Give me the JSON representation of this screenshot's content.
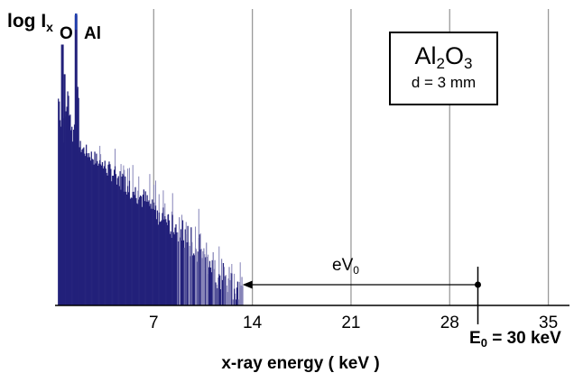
{
  "chart_data": {
    "type": "bar",
    "ylabel_main": "log I",
    "ylabel_sub": "x",
    "xlabel": "x-ray energy ( keV )",
    "x_ticks": [
      7,
      14,
      21,
      28,
      35
    ],
    "xlim": [
      0,
      36.5
    ],
    "ylim": [
      0,
      1
    ],
    "grid_x": true,
    "peaks": [
      {
        "label": "O",
        "energy": 0.52
      },
      {
        "label": "Al",
        "energy": 1.49
      }
    ],
    "specimen": {
      "formula_main": "Al",
      "formula_sub1": "2",
      "formula_mid": "O",
      "formula_sub2": "3",
      "thickness": "d = 3 mm"
    },
    "beam_energy": {
      "prefix": "E",
      "sub": "0",
      "text": "= 30 keV",
      "value": 30
    },
    "annotation": {
      "main": "eV",
      "sub": "0",
      "arrow_from": 30,
      "arrow_to": 13.3
    },
    "spectrum": {
      "bremsstrahlung_start": 0.2,
      "cutoff_energy": 13.0,
      "tail_end": 13.3,
      "peak_heights": {
        "O": 0.88,
        "Al": 0.98
      },
      "bin_width": 0.06
    },
    "colors": {
      "spectrum": "#22207a",
      "spectrum_light": "#8684b8",
      "grid": "#9a9a9a",
      "peak_marker": "#1f3fae"
    }
  }
}
